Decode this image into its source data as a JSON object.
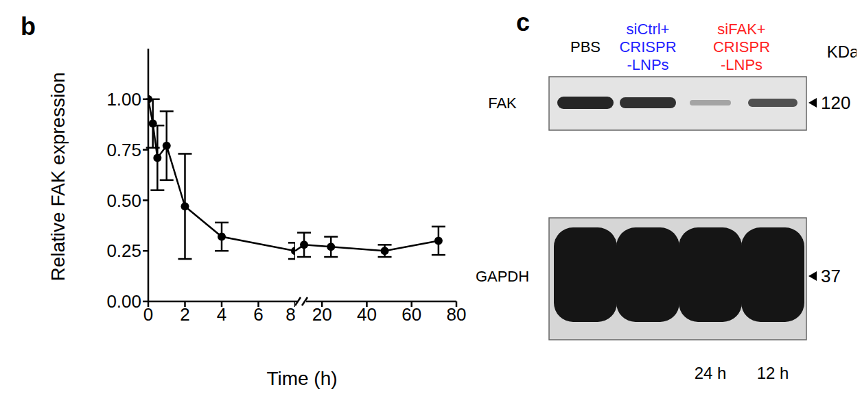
{
  "chart_data": {
    "type": "line",
    "panel_label": "b",
    "x_label": "Time (h)",
    "y_label": "Relative FAK expression",
    "x": [
      0,
      0.25,
      0.5,
      1,
      2,
      4,
      8,
      12,
      24,
      48,
      72
    ],
    "values": [
      1.0,
      0.88,
      0.71,
      0.77,
      0.47,
      0.32,
      0.25,
      0.28,
      0.27,
      0.25,
      0.3
    ],
    "errors": [
      0,
      0.12,
      0.16,
      0.17,
      0.26,
      0.07,
      0.04,
      0.06,
      0.05,
      0.03,
      0.07
    ],
    "color": "#000000",
    "marker": "circle",
    "x_segments": [
      {
        "xlim": [
          0,
          8
        ],
        "xticks": [
          0,
          2,
          4,
          6,
          8
        ]
      },
      {
        "xlim": [
          8,
          80
        ],
        "xticks": [
          20,
          40,
          60,
          80
        ]
      }
    ],
    "ylim": [
      0,
      1.25
    ],
    "yticks": [
      {
        "value": 0,
        "label": "0.00"
      },
      {
        "value": 0.25,
        "label": "0.25"
      },
      {
        "value": 0.5,
        "label": "0.50"
      },
      {
        "value": 0.75,
        "label": "0.75"
      },
      {
        "value": 1,
        "label": "1.00"
      }
    ],
    "grid": false
  },
  "blot": {
    "panel_label": "c",
    "marker_title": "KDa",
    "groups": [
      {
        "label": [
          "PBS"
        ],
        "color": "#000000",
        "lanes": [
          null
        ]
      },
      {
        "label": [
          "siCtrl+",
          "CRISPR",
          "-LNPs"
        ],
        "color": "#1f1fff",
        "lanes": [
          null
        ]
      },
      {
        "label": [
          "siFAK+",
          "CRISPR",
          "-LNPs"
        ],
        "color": "#ff1f1f",
        "lanes": [
          "24 h",
          "12 h"
        ]
      }
    ],
    "rows": [
      {
        "label": "FAK",
        "marker": 120
      },
      {
        "label": "GAPDH",
        "marker": 37
      }
    ]
  }
}
